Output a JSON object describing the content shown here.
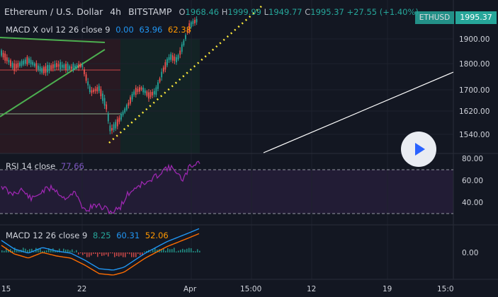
{
  "header": {
    "symbol": "Ethereum / U.S. Dollar",
    "interval": "4h",
    "exchange": "BITSTAMP",
    "o_label": "O",
    "o": "1968.46",
    "h_label": "H",
    "h": "1999.99",
    "l_label": "L",
    "l": "1949.77",
    "c_label": "C",
    "c": "1995.37",
    "change": "+27.55 (+1.40%)"
  },
  "indicators": {
    "macd_cross": {
      "label": "MACD X ovl 12 26 close 9",
      "v1": "0.00",
      "v2": "63.96",
      "v3": "62.38"
    },
    "rsi": {
      "label": "RSI 14 close",
      "value": "77.66"
    },
    "macd": {
      "label": "MACD 12 26 close 9",
      "v1": "8.25",
      "v2": "60.31",
      "v3": "52.06"
    }
  },
  "price_axis": {
    "current_price": "1995.37",
    "symbol_tag": "ETHUSD",
    "ticks": [
      "1900.00",
      "1800.00",
      "1700.00",
      "1620.00",
      "1540.00"
    ],
    "rsi_ticks": [
      "80.00",
      "60.00",
      "40.00"
    ],
    "macd_ticks": [
      "0.00"
    ]
  },
  "time_axis": {
    "ticks": [
      "15",
      "22",
      "Apr",
      "15:00",
      "12",
      "19",
      "15:0"
    ]
  },
  "colors": {
    "bg": "#131722",
    "up": "#26a69a",
    "down": "#ef5350",
    "rsi": "#7e57c2",
    "macd": "#2196f3",
    "signal": "#ff6d00"
  },
  "icons": {
    "play": "play-icon"
  }
}
